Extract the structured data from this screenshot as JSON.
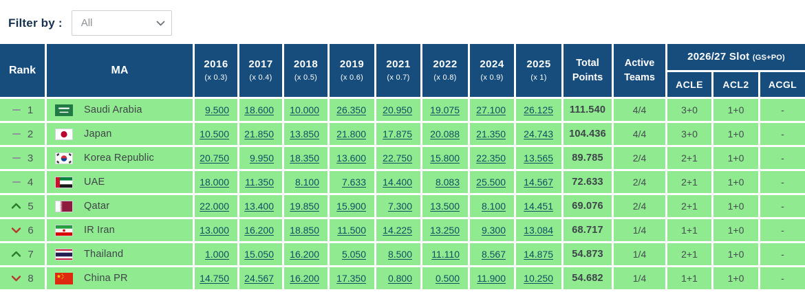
{
  "filter": {
    "label": "Filter by :",
    "selected": "All"
  },
  "colors": {
    "header_bg": "#174d7c",
    "row_bg": "#90ea90",
    "link": "#0f4d63",
    "rank_up": "#2b7d2b",
    "rank_down": "#b5392e",
    "rank_same": "#8d959b"
  },
  "table": {
    "headers": {
      "rank": "Rank",
      "ma": "MA",
      "years": [
        {
          "year": "2016",
          "multiplier": "(x 0.3)"
        },
        {
          "year": "2017",
          "multiplier": "(x 0.4)"
        },
        {
          "year": "2018",
          "multiplier": "(x 0.5)"
        },
        {
          "year": "2019",
          "multiplier": "(x 0.6)"
        },
        {
          "year": "2021",
          "multiplier": "(x 0.7)"
        },
        {
          "year": "2022",
          "multiplier": "(x 0.8)"
        },
        {
          "year": "2024",
          "multiplier": "(x 0.9)"
        },
        {
          "year": "2025",
          "multiplier": "(x 1)"
        }
      ],
      "total": "Total Points",
      "active": "Active Teams",
      "slot_group": {
        "title": "2026/27 Slot",
        "suffix": "(GS+PO)",
        "columns": [
          "ACLE",
          "ACL2",
          "ACGL"
        ]
      }
    },
    "rows": [
      {
        "rank": "1",
        "change": "same",
        "country": "Saudi Arabia",
        "flag": "flag-saudi-arabia",
        "years": [
          "9.500",
          "18.600",
          "10.000",
          "26.350",
          "20.950",
          "19.075",
          "27.100",
          "26.125"
        ],
        "total": "111.540",
        "active": "4/4",
        "acle": "3+0",
        "acl2": "1+0",
        "acgl": "-"
      },
      {
        "rank": "2",
        "change": "same",
        "country": "Japan",
        "flag": "flag-japan",
        "years": [
          "10.500",
          "21.850",
          "13.850",
          "21.800",
          "17.875",
          "20.088",
          "21.350",
          "24.743"
        ],
        "total": "104.436",
        "active": "4/4",
        "acle": "3+0",
        "acl2": "1+0",
        "acgl": "-"
      },
      {
        "rank": "3",
        "change": "same",
        "country": "Korea Republic",
        "flag": "flag-korea-republic",
        "years": [
          "20.750",
          "9.950",
          "18.350",
          "13.600",
          "22.750",
          "15.800",
          "22.350",
          "13.565"
        ],
        "total": "89.785",
        "active": "2/4",
        "acle": "2+1",
        "acl2": "1+0",
        "acgl": "-"
      },
      {
        "rank": "4",
        "change": "same",
        "country": "UAE",
        "flag": "flag-uae",
        "years": [
          "18.000",
          "11.350",
          "8.100",
          "7.633",
          "14.400",
          "8.083",
          "25.500",
          "14.567"
        ],
        "total": "72.633",
        "active": "2/4",
        "acle": "2+1",
        "acl2": "1+0",
        "acgl": "-"
      },
      {
        "rank": "5",
        "change": "up",
        "country": "Qatar",
        "flag": "flag-qatar",
        "years": [
          "22.000",
          "13.400",
          "19.850",
          "15.900",
          "7.300",
          "13.500",
          "8.100",
          "14.451"
        ],
        "total": "69.076",
        "active": "2/4",
        "acle": "2+1",
        "acl2": "1+0",
        "acgl": "-"
      },
      {
        "rank": "6",
        "change": "down",
        "country": "IR Iran",
        "flag": "flag-ir-iran",
        "years": [
          "13.000",
          "16.200",
          "18.850",
          "11.500",
          "14.225",
          "13.250",
          "9.300",
          "13.084"
        ],
        "total": "68.717",
        "active": "1/4",
        "acle": "1+1",
        "acl2": "1+0",
        "acgl": "-"
      },
      {
        "rank": "7",
        "change": "up",
        "country": "Thailand",
        "flag": "flag-thailand",
        "years": [
          "1.000",
          "15.050",
          "16.200",
          "5.050",
          "8.500",
          "11.110",
          "8.567",
          "14.875"
        ],
        "total": "54.873",
        "active": "1/4",
        "acle": "2+1",
        "acl2": "1+0",
        "acgl": "-"
      },
      {
        "rank": "8",
        "change": "down",
        "country": "China PR",
        "flag": "flag-china-pr",
        "years": [
          "14.750",
          "24.567",
          "16.200",
          "17.350",
          "0.800",
          "0.500",
          "11.900",
          "10.250"
        ],
        "total": "54.682",
        "active": "1/4",
        "acle": "1+1",
        "acl2": "1+0",
        "acgl": "-"
      }
    ]
  }
}
